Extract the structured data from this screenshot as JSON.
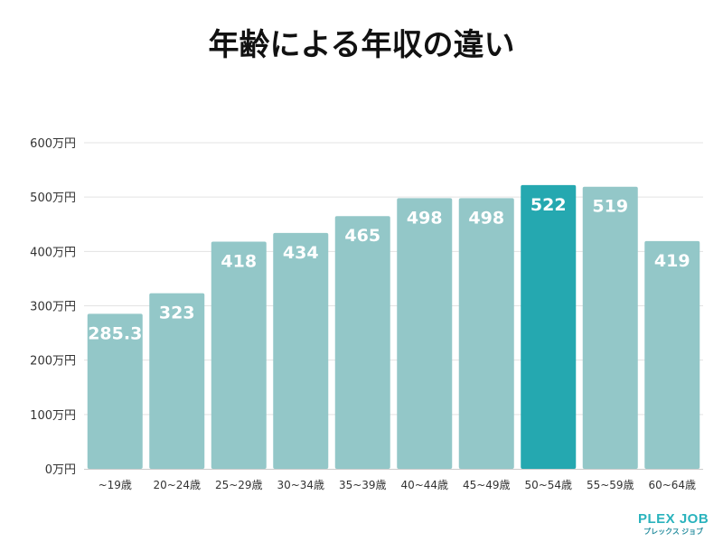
{
  "chart_data": {
    "type": "bar",
    "title": "年齢による年収の違い",
    "categories": [
      "~19歳",
      "20~24歳",
      "25~29歳",
      "30~34歳",
      "35~39歳",
      "40~44歳",
      "45~49歳",
      "50~54歳",
      "55~59歳",
      "60~64歳"
    ],
    "values": [
      285.3,
      323,
      418,
      434,
      465,
      498,
      498,
      522,
      519,
      419
    ],
    "data_labels": [
      "285.3",
      "323",
      "418",
      "434",
      "465",
      "498",
      "498",
      "522",
      "519",
      "419"
    ],
    "highlight_index": 7,
    "ylim": [
      0,
      600
    ],
    "yticks": [
      0,
      100,
      200,
      300,
      400,
      500,
      600
    ],
    "ytick_labels": [
      "0万円",
      "100万円",
      "200万円",
      "300万円",
      "400万円",
      "500万円",
      "600万円"
    ],
    "grid": true,
    "colors": {
      "bar": "#93c7c8",
      "highlight": "#25a8b0",
      "grid": "#e3e3e3"
    }
  },
  "logo": {
    "main": "PLEX JOB",
    "sub": "プレックス ジョブ"
  }
}
